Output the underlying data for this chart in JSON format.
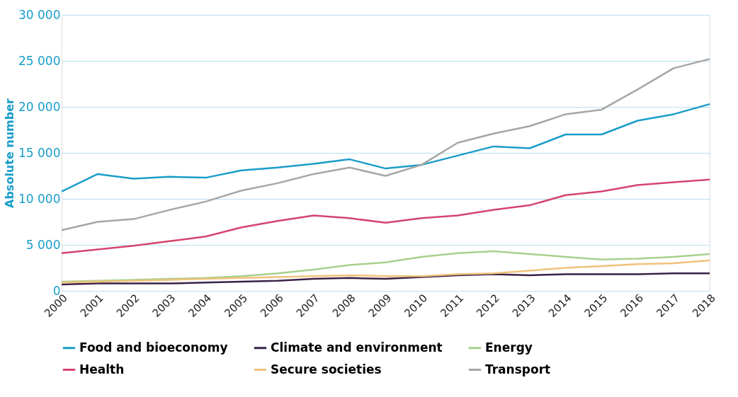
{
  "chart_data": {
    "type": "line",
    "ylabel": "Absolute number",
    "categories": [
      "2000",
      "2001",
      "2002",
      "2003",
      "2004",
      "2005",
      "2006",
      "2007",
      "2008",
      "2009",
      "2010",
      "2011",
      "2012",
      "2013",
      "2014",
      "2015",
      "2016",
      "2017",
      "2018"
    ],
    "series": [
      {
        "name": "Food and bioeconomy",
        "color": "#1a9dc9",
        "values": [
          10800,
          12700,
          12200,
          12400,
          12300,
          13100,
          13400,
          13800,
          14300,
          13300,
          13700,
          14700,
          15700,
          15500,
          17000,
          17000,
          18500,
          19200,
          20300
        ]
      },
      {
        "name": "Climate and environment",
        "color": "#3b2245",
        "values": [
          700,
          800,
          800,
          800,
          900,
          1000,
          1100,
          1300,
          1400,
          1300,
          1500,
          1700,
          1800,
          1700,
          1800,
          1800,
          1800,
          1900,
          1900
        ]
      },
      {
        "name": "Energy",
        "color": "#a8d08d",
        "values": [
          1000,
          1100,
          1200,
          1300,
          1400,
          1600,
          1900,
          2300,
          2800,
          3100,
          3700,
          4100,
          4300,
          4000,
          3700,
          3400,
          3500,
          3700,
          4000
        ]
      },
      {
        "name": "Health",
        "color": "#d4446f",
        "values": [
          4100,
          4500,
          4900,
          5400,
          5900,
          6900,
          7600,
          8200,
          7900,
          7400,
          7900,
          8200,
          8800,
          9300,
          10400,
          10800,
          11500,
          11800,
          12100
        ]
      },
      {
        "name": "Secure societies",
        "color": "#f0c27b",
        "values": [
          900,
          1000,
          1100,
          1200,
          1300,
          1400,
          1500,
          1600,
          1700,
          1600,
          1600,
          1800,
          1900,
          2200,
          2500,
          2700,
          2900,
          3000,
          3300
        ]
      },
      {
        "name": "Transport",
        "color": "#a6a6a6",
        "values": [
          6600,
          7500,
          7800,
          8800,
          9700,
          10900,
          11700,
          12700,
          13400,
          12500,
          13700,
          16100,
          17100,
          17900,
          19200,
          19700,
          21900,
          24200,
          25200
        ]
      }
    ],
    "ylim": [
      0,
      30000
    ],
    "yticks": [
      0,
      {
        "value": 5000,
        "label": "5 000"
      },
      {
        "value": 10000,
        "label": "10 000"
      },
      {
        "value": 15000,
        "label": "15 000"
      },
      {
        "value": 20000,
        "label": "20 000"
      },
      {
        "value": 25000,
        "label": "25 000"
      },
      {
        "value": 30000,
        "label": "30 000"
      }
    ],
    "grid": "y",
    "legend": "bottom",
    "marker": "none",
    "line_style": "solid"
  }
}
